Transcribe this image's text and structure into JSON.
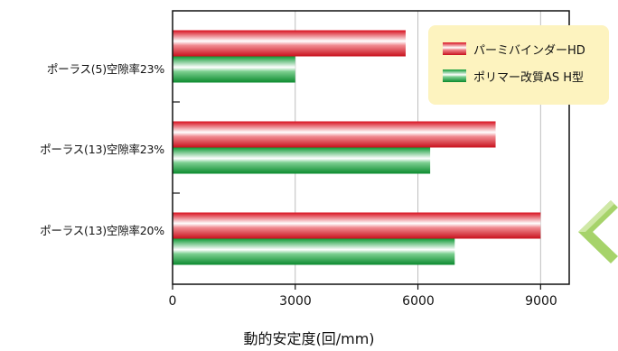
{
  "chart_data": {
    "type": "bar",
    "orientation": "horizontal",
    "categories": [
      "ポーラス(5)空隙率23%",
      "ポーラス(13)空隙率23%",
      "ポーラス(13)空隙率20%"
    ],
    "series": [
      {
        "name": "パーミバインダーHD",
        "values": [
          5700,
          7900,
          9000
        ],
        "color": "#e8222e"
      },
      {
        "name": "ポリマー改質AS H型",
        "values": [
          3000,
          6300,
          6900
        ],
        "color": "#17a03c"
      }
    ],
    "xlabel": "動的安定度(回/mm)",
    "xlim": [
      0,
      9700
    ],
    "xticks": [
      "0",
      "3000",
      "6000",
      "9000"
    ],
    "grid": true,
    "legend_position": "top-right"
  },
  "colors": {
    "legend_bg": "#fdf3bf",
    "accent": "#8cc63f"
  },
  "decor": {
    "right_icon": "chevron-left-icon"
  }
}
